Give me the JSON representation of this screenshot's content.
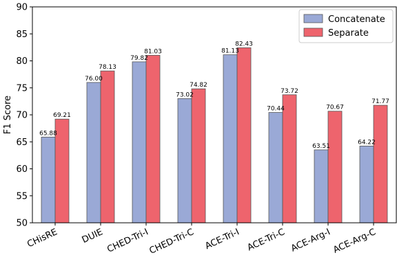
{
  "chart_data": {
    "type": "bar",
    "categories": [
      "CHisRE",
      "DUIE",
      "CHED-Tri-I",
      "CHED-Tri-C",
      "ACE-Tri-I",
      "ACE-Tri-C",
      "ACE-Arg-I",
      "ACE-Arg-C"
    ],
    "series": [
      {
        "name": "Concatenate",
        "color": "#9aa9d6",
        "values": [
          65.88,
          76.0,
          79.82,
          73.02,
          81.13,
          70.44,
          63.51,
          64.22
        ],
        "labels": [
          "65.88",
          "76.00",
          "79.82",
          "73.02",
          "81.13",
          "70.44",
          "63.51",
          "64.22"
        ]
      },
      {
        "name": "Separate",
        "color": "#ee646d",
        "values": [
          69.21,
          78.13,
          81.03,
          74.82,
          82.43,
          73.72,
          70.67,
          71.77
        ],
        "labels": [
          "69.21",
          "78.13",
          "81.03",
          "74.82",
          "82.43",
          "73.72",
          "70.67",
          "71.77"
        ]
      }
    ],
    "ylabel": "F1 Score",
    "ylim": [
      50,
      90
    ],
    "yticks": [
      50,
      55,
      60,
      65,
      70,
      75,
      80,
      85,
      90
    ],
    "legend": "top-right",
    "grid": false
  }
}
